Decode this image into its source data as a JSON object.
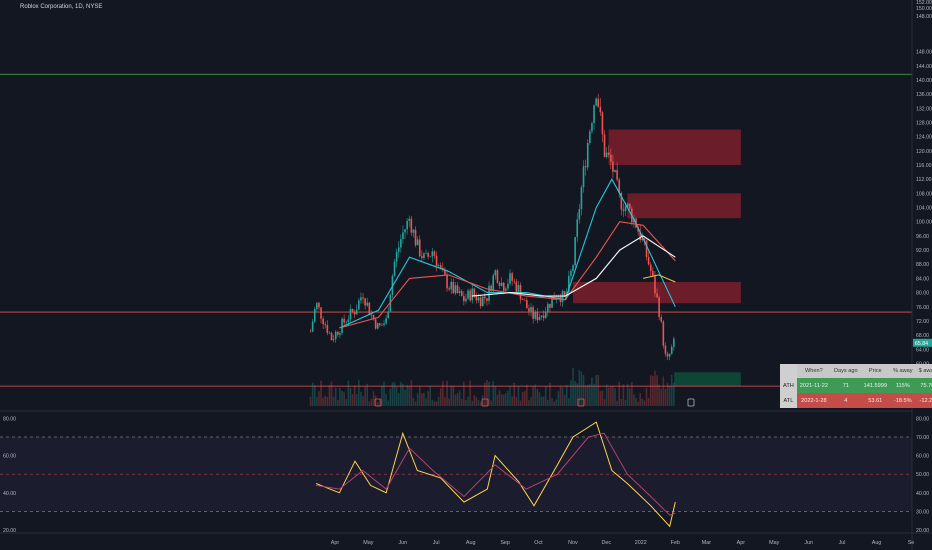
{
  "header": {
    "title": "Roblox Corporation, 1D, NYSE"
  },
  "price_axis": {
    "ticks": [
      "152.00",
      "150.00",
      "148.00",
      "144.00",
      "140.00",
      "136.00",
      "132.00",
      "128.00",
      "124.00",
      "120.00",
      "116.00",
      "112.00",
      "108.00",
      "104.00",
      "100.00",
      "96.00",
      "92.00",
      "88.00",
      "84.00",
      "80.00",
      "76.00",
      "72.00",
      "68.00",
      "64.00",
      "60.00",
      "56.00",
      "52.00",
      "48.00"
    ],
    "last_price": "65.84",
    "last_color": "#26a69a"
  },
  "rsi_axis": {
    "left_ticks": [
      "80.00",
      "60.00",
      "40.00",
      "20.00"
    ],
    "right_ticks": [
      "80.00",
      "70.00",
      "60.00",
      "50.00",
      "40.00",
      "30.00",
      "20.00"
    ]
  },
  "time_axis": [
    "Apr",
    "May",
    "Jun",
    "Jul",
    "Aug",
    "Sep",
    "Oct",
    "Nov",
    "Dec",
    "2022",
    "Feb",
    "Mar",
    "Apr",
    "May",
    "Jun",
    "Jul",
    "Aug",
    "Se"
  ],
  "table": {
    "headers": [
      "When?",
      "Days ago",
      "Price",
      "% away",
      "$ away"
    ],
    "rows": [
      {
        "label": "ATH",
        "values": [
          "2021-11-22",
          "71",
          "141.5999",
          "115%",
          "75.76"
        ]
      },
      {
        "label": "ATL",
        "values": [
          "2022-1-28",
          "4",
          "53.61",
          "-18.5%",
          "-12.23"
        ]
      }
    ]
  },
  "chart_data": [
    {
      "type": "candlestick",
      "title": "Roblox Corporation, 1D, NYSE",
      "x_ticks": [
        "Apr",
        "May",
        "Jun",
        "Jul",
        "Aug",
        "Sep",
        "Oct",
        "Nov",
        "Dec",
        "2022",
        "Feb",
        "Mar",
        "Apr",
        "May",
        "Jun",
        "Jul",
        "Aug",
        "Se"
      ],
      "ylim": [
        48,
        152
      ],
      "close_series": [
        {
          "date": "2021-03-10",
          "value": 69
        },
        {
          "date": "2021-03-15",
          "value": 77
        },
        {
          "date": "2021-03-22",
          "value": 72
        },
        {
          "date": "2021-03-29",
          "value": 67
        },
        {
          "date": "2021-04-05",
          "value": 70
        },
        {
          "date": "2021-04-12",
          "value": 73
        },
        {
          "date": "2021-04-19",
          "value": 75
        },
        {
          "date": "2021-04-26",
          "value": 80
        },
        {
          "date": "2021-05-03",
          "value": 74
        },
        {
          "date": "2021-05-10",
          "value": 70
        },
        {
          "date": "2021-05-17",
          "value": 72
        },
        {
          "date": "2021-05-24",
          "value": 88
        },
        {
          "date": "2021-05-31",
          "value": 96
        },
        {
          "date": "2021-06-07",
          "value": 101
        },
        {
          "date": "2021-06-14",
          "value": 93
        },
        {
          "date": "2021-06-21",
          "value": 89
        },
        {
          "date": "2021-06-28",
          "value": 92
        },
        {
          "date": "2021-07-05",
          "value": 86
        },
        {
          "date": "2021-07-12",
          "value": 82
        },
        {
          "date": "2021-07-19",
          "value": 80
        },
        {
          "date": "2021-07-26",
          "value": 78
        },
        {
          "date": "2021-08-02",
          "value": 80
        },
        {
          "date": "2021-08-09",
          "value": 78
        },
        {
          "date": "2021-08-16",
          "value": 79
        },
        {
          "date": "2021-08-23",
          "value": 86
        },
        {
          "date": "2021-08-30",
          "value": 82
        },
        {
          "date": "2021-09-06",
          "value": 84
        },
        {
          "date": "2021-09-13",
          "value": 81
        },
        {
          "date": "2021-09-20",
          "value": 76
        },
        {
          "date": "2021-09-27",
          "value": 73
        },
        {
          "date": "2021-10-04",
          "value": 74
        },
        {
          "date": "2021-10-11",
          "value": 77
        },
        {
          "date": "2021-10-18",
          "value": 80
        },
        {
          "date": "2021-10-25",
          "value": 78
        },
        {
          "date": "2021-11-01",
          "value": 88
        },
        {
          "date": "2021-11-08",
          "value": 108
        },
        {
          "date": "2021-11-15",
          "value": 124
        },
        {
          "date": "2021-11-22",
          "value": 138
        },
        {
          "date": "2021-11-29",
          "value": 120
        },
        {
          "date": "2021-12-06",
          "value": 116
        },
        {
          "date": "2021-12-13",
          "value": 106
        },
        {
          "date": "2021-12-20",
          "value": 104
        },
        {
          "date": "2021-12-27",
          "value": 100
        },
        {
          "date": "2022-01-03",
          "value": 94
        },
        {
          "date": "2022-01-10",
          "value": 86
        },
        {
          "date": "2022-01-17",
          "value": 76
        },
        {
          "date": "2022-01-24",
          "value": 60
        },
        {
          "date": "2022-01-31",
          "value": 65.84
        }
      ],
      "moving_averages": [
        {
          "color": "#26c6da",
          "points": [
            {
              "date": "2021-04-05",
              "value": 70
            },
            {
              "date": "2021-05-10",
              "value": 75
            },
            {
              "date": "2021-06-07",
              "value": 90
            },
            {
              "date": "2021-07-12",
              "value": 86
            },
            {
              "date": "2021-08-16",
              "value": 80
            },
            {
              "date": "2021-09-20",
              "value": 80
            },
            {
              "date": "2021-10-25",
              "value": 78
            },
            {
              "date": "2021-11-22",
              "value": 104
            },
            {
              "date": "2021-12-06",
              "value": 112
            },
            {
              "date": "2021-12-27",
              "value": 100
            },
            {
              "date": "2022-01-17",
              "value": 86
            },
            {
              "date": "2022-02-01",
              "value": 76
            }
          ]
        },
        {
          "color": "#ef5350",
          "points": [
            {
              "date": "2021-04-05",
              "value": 70
            },
            {
              "date": "2021-05-10",
              "value": 73
            },
            {
              "date": "2021-06-07",
              "value": 84
            },
            {
              "date": "2021-07-12",
              "value": 85
            },
            {
              "date": "2021-08-16",
              "value": 81
            },
            {
              "date": "2021-09-20",
              "value": 79
            },
            {
              "date": "2021-10-25",
              "value": 78
            },
            {
              "date": "2021-11-22",
              "value": 90
            },
            {
              "date": "2021-12-13",
              "value": 100
            },
            {
              "date": "2022-01-03",
              "value": 99
            },
            {
              "date": "2022-02-01",
              "value": 89
            }
          ]
        },
        {
          "color": "#ffffff",
          "points": [
            {
              "date": "2021-08-02",
              "value": 79
            },
            {
              "date": "2021-09-06",
              "value": 80
            },
            {
              "date": "2021-10-04",
              "value": 79
            },
            {
              "date": "2021-10-25",
              "value": 79
            },
            {
              "date": "2021-11-22",
              "value": 84
            },
            {
              "date": "2021-12-13",
              "value": 92
            },
            {
              "date": "2022-01-03",
              "value": 96
            },
            {
              "date": "2022-02-01",
              "value": 90
            }
          ]
        },
        {
          "color": "#f0c14b",
          "points": [
            {
              "date": "2022-01-03",
              "value": 84
            },
            {
              "date": "2022-01-17",
              "value": 85
            },
            {
              "date": "2022-02-01",
              "value": 83
            }
          ]
        }
      ],
      "horizontal_lines": [
        {
          "value": 141.6,
          "color": "#4caf50"
        },
        {
          "value": 74.5,
          "color": "#ef5350"
        },
        {
          "value": 53.6,
          "color": "#ef5350"
        }
      ],
      "zones": [
        {
          "from": "2021-12-03",
          "to": "2022-04-01",
          "low": 116,
          "high": 126,
          "color": "#7b1e2b"
        },
        {
          "from": "2021-12-20",
          "to": "2022-04-01",
          "low": 101,
          "high": 108,
          "color": "#7b1e2b"
        },
        {
          "from": "2021-11-01",
          "to": "2022-04-01",
          "low": 77,
          "high": 83,
          "color": "#7b1e2b"
        },
        {
          "from": "2022-01-31",
          "to": "2022-04-01",
          "low": 53.6,
          "high": 57.5,
          "color": "#0e4d3a"
        }
      ]
    },
    {
      "type": "line",
      "ylim": [
        15,
        85
      ],
      "levels": [
        70,
        50,
        30
      ],
      "series": [
        {
          "color": "#ffd54f",
          "points": [
            {
              "date": "2021-03-15",
              "value": 45
            },
            {
              "date": "2021-04-05",
              "value": 40
            },
            {
              "date": "2021-04-19",
              "value": 57
            },
            {
              "date": "2021-05-03",
              "value": 44
            },
            {
              "date": "2021-05-17",
              "value": 40
            },
            {
              "date": "2021-06-01",
              "value": 72
            },
            {
              "date": "2021-06-14",
              "value": 52
            },
            {
              "date": "2021-07-05",
              "value": 48
            },
            {
              "date": "2021-07-26",
              "value": 35
            },
            {
              "date": "2021-08-16",
              "value": 42
            },
            {
              "date": "2021-08-23",
              "value": 60
            },
            {
              "date": "2021-09-13",
              "value": 46
            },
            {
              "date": "2021-09-27",
              "value": 33
            },
            {
              "date": "2021-10-18",
              "value": 55
            },
            {
              "date": "2021-11-01",
              "value": 70
            },
            {
              "date": "2021-11-22",
              "value": 78
            },
            {
              "date": "2021-12-06",
              "value": 52
            },
            {
              "date": "2021-12-20",
              "value": 45
            },
            {
              "date": "2022-01-10",
              "value": 33
            },
            {
              "date": "2022-01-27",
              "value": 22
            },
            {
              "date": "2022-02-01",
              "value": 35
            }
          ]
        },
        {
          "color": "#b5426a",
          "points": [
            {
              "date": "2021-03-15",
              "value": 44
            },
            {
              "date": "2021-04-05",
              "value": 42
            },
            {
              "date": "2021-04-26",
              "value": 52
            },
            {
              "date": "2021-05-17",
              "value": 42
            },
            {
              "date": "2021-06-07",
              "value": 64
            },
            {
              "date": "2021-06-28",
              "value": 52
            },
            {
              "date": "2021-07-26",
              "value": 38
            },
            {
              "date": "2021-08-23",
              "value": 55
            },
            {
              "date": "2021-09-20",
              "value": 42
            },
            {
              "date": "2021-10-18",
              "value": 50
            },
            {
              "date": "2021-11-15",
              "value": 70
            },
            {
              "date": "2021-11-29",
              "value": 72
            },
            {
              "date": "2021-12-20",
              "value": 50
            },
            {
              "date": "2022-01-10",
              "value": 38
            },
            {
              "date": "2022-01-27",
              "value": 28
            },
            {
              "date": "2022-02-01",
              "value": 29
            }
          ]
        }
      ]
    }
  ]
}
